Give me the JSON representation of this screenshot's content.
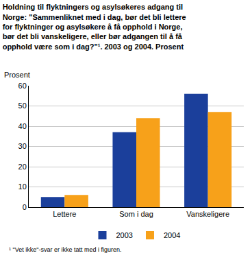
{
  "chart_data": {
    "type": "bar",
    "title": "Holdning til flyktningers og asylsøkeres adgang til Norge: \"Sammenliknet med i dag, bør det bli lettere for flyktninger og asylsøkere å få opphold i Norge, bør det bli vanskeligere, eller bør adgangen til å få opphold være som i dag?\"¹. 2003 og 2004. Prosent",
    "ylabel": "Prosent",
    "categories": [
      "Lettere",
      "Som i dag",
      "Vanskeligere"
    ],
    "series": [
      {
        "name": "2003",
        "color": "#1b3f9b",
        "values": [
          5,
          37,
          56
        ]
      },
      {
        "name": "2004",
        "color": "#f7a11a",
        "values": [
          6,
          44,
          47
        ]
      }
    ],
    "ylim": [
      0,
      60
    ],
    "yticks": [
      0,
      10,
      20,
      30,
      40,
      50,
      60
    ],
    "grid": true,
    "legend": "bottom",
    "note": "¹ \"Vet ikke\"-svar er ikke tatt med i figuren."
  }
}
